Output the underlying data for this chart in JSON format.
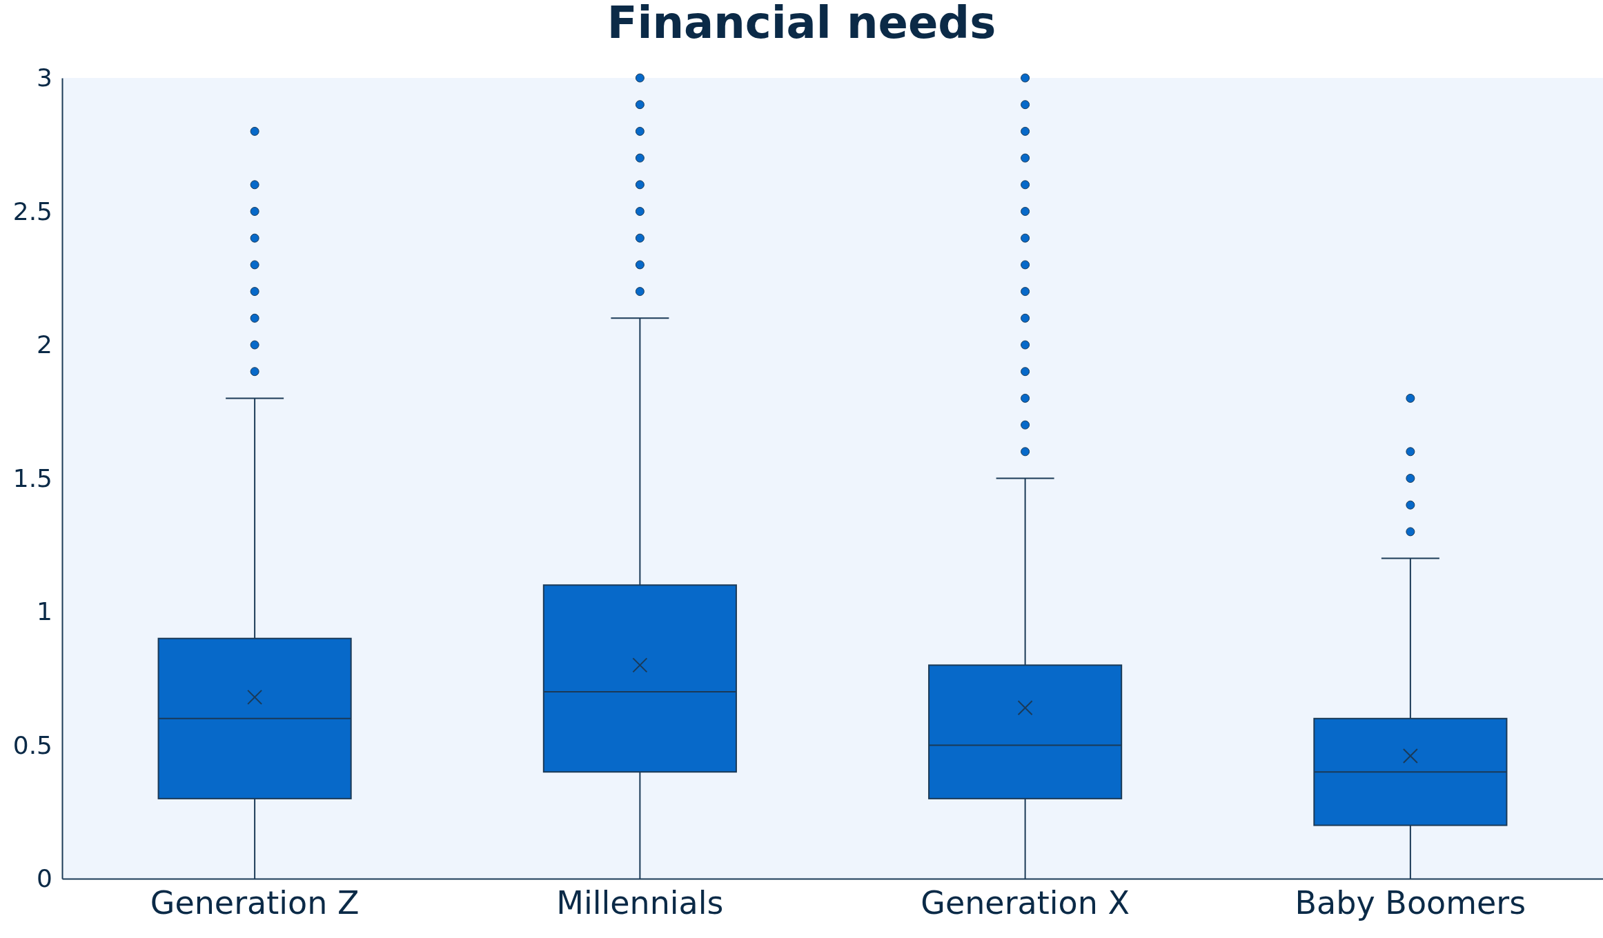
{
  "chart_data": {
    "type": "box",
    "title": "Financial needs",
    "categories": [
      "Generation Z",
      "Millennials",
      "Generation X",
      "Baby Boomers"
    ],
    "color": "#0769c9",
    "boxes": [
      {
        "low": 0,
        "q1": 0.3,
        "median": 0.6,
        "q3": 0.9,
        "high": 1.8,
        "mean": 0.68,
        "outliers": [
          1.9,
          2.0,
          2.1,
          2.2,
          2.3,
          2.4,
          2.5,
          2.6,
          2.8
        ]
      },
      {
        "low": 0,
        "q1": 0.4,
        "median": 0.7,
        "q3": 1.1,
        "high": 2.1,
        "mean": 0.8,
        "outliers": [
          2.2,
          2.3,
          2.4,
          2.5,
          2.6,
          2.7,
          2.8,
          2.9,
          3.0
        ]
      },
      {
        "low": 0,
        "q1": 0.3,
        "median": 0.5,
        "q3": 0.8,
        "high": 1.5,
        "mean": 0.64,
        "outliers": [
          1.6,
          1.7,
          1.8,
          1.9,
          2.0,
          2.1,
          2.2,
          2.3,
          2.4,
          2.5,
          2.6,
          2.7,
          2.8,
          2.9,
          3.0
        ]
      },
      {
        "low": 0,
        "q1": 0.2,
        "median": 0.4,
        "q3": 0.6,
        "high": 1.2,
        "mean": 0.46,
        "outliers": [
          1.3,
          1.4,
          1.5,
          1.6,
          1.8
        ]
      }
    ],
    "ylim": [
      0,
      3
    ],
    "yticks": [
      0,
      0.5,
      1,
      1.5,
      2,
      2.5,
      3
    ],
    "grid": false
  }
}
